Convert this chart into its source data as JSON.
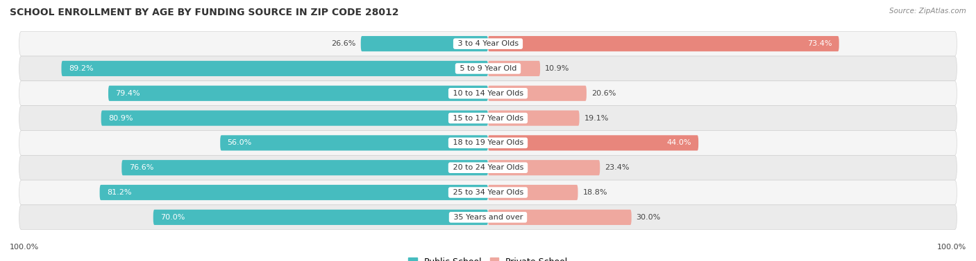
{
  "title": "SCHOOL ENROLLMENT BY AGE BY FUNDING SOURCE IN ZIP CODE 28012",
  "source": "Source: ZipAtlas.com",
  "categories": [
    "3 to 4 Year Olds",
    "5 to 9 Year Old",
    "10 to 14 Year Olds",
    "15 to 17 Year Olds",
    "18 to 19 Year Olds",
    "20 to 24 Year Olds",
    "25 to 34 Year Olds",
    "35 Years and over"
  ],
  "public_values": [
    26.6,
    89.2,
    79.4,
    80.9,
    56.0,
    76.6,
    81.2,
    70.0
  ],
  "private_values": [
    73.4,
    10.9,
    20.6,
    19.1,
    44.0,
    23.4,
    18.8,
    30.0
  ],
  "public_color": "#46BCBF",
  "private_color": "#E8867C",
  "private_color_light": "#EFA89F",
  "row_bg_odd": "#F5F5F5",
  "row_bg_even": "#EBEBEB",
  "bg_color": "#FFFFFF",
  "title_fontsize": 10,
  "bar_label_fontsize": 8,
  "cat_label_fontsize": 8,
  "legend_fontsize": 9,
  "bar_height": 0.62,
  "left_label": "100.0%",
  "right_label": "100.0%"
}
